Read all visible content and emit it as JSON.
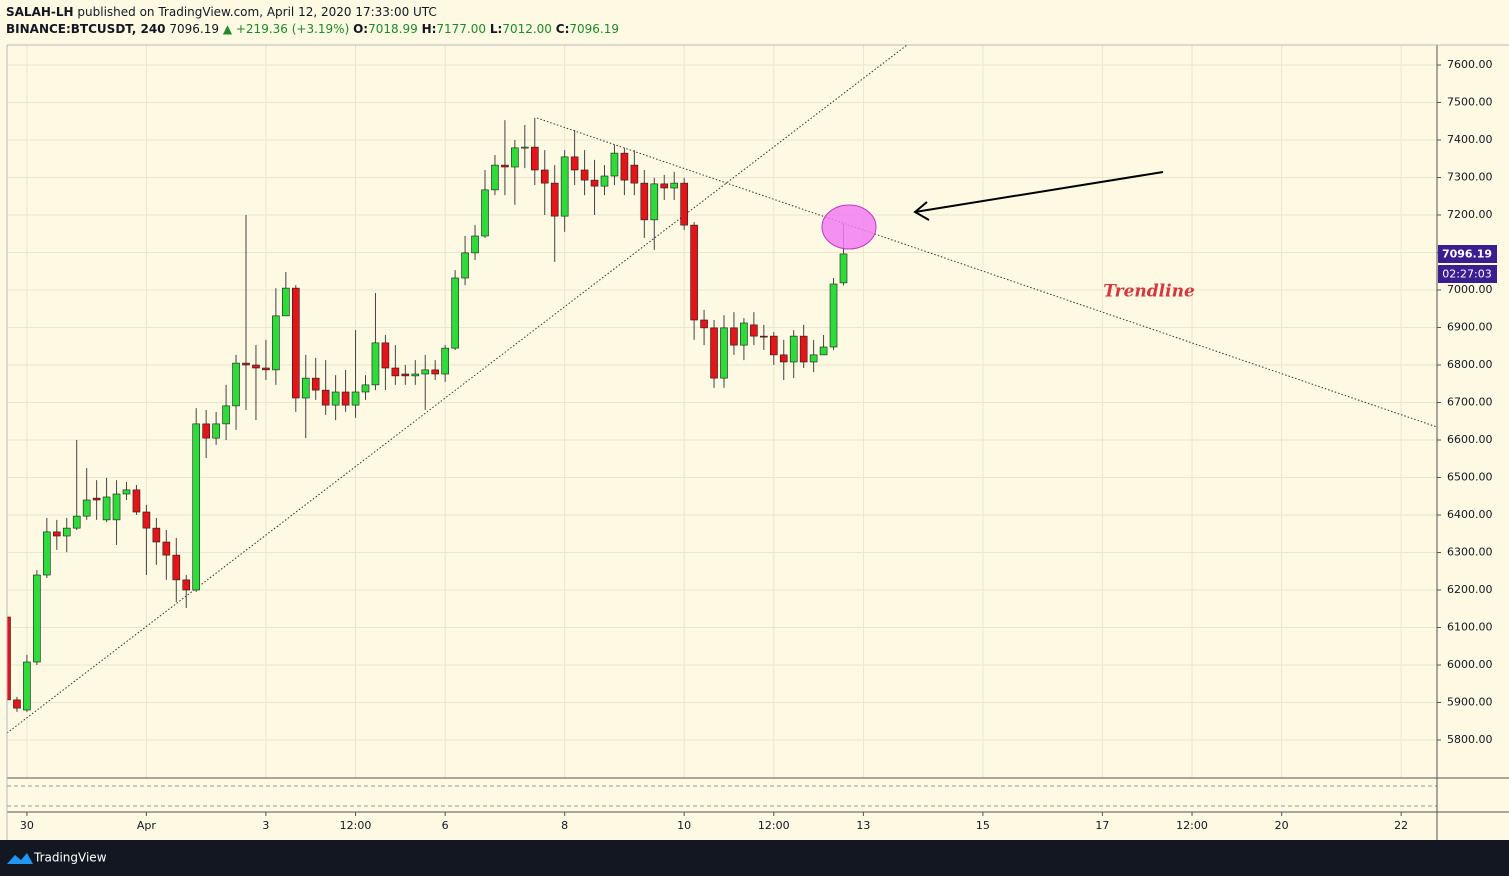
{
  "header": {
    "author": "SALAH-LH",
    "published": "published on TradingView.com, April 12, 2020 17:33:00 UTC",
    "symbol": "BINANCE:BTCUSDT, 240",
    "last": "7096.19",
    "change": "▲ +219.36 (+3.19%)",
    "o_label": "O:",
    "o_value": "7018.99",
    "h_label": "H:",
    "h_value": "7177.00",
    "l_label": "L:",
    "l_value": "7012.00",
    "c_label": "C:",
    "c_value": "7096.19"
  },
  "price_label": "7096.19",
  "countdown": "02:27:03",
  "annotation": "Trendline",
  "logo": "TradingView",
  "chart_data": {
    "type": "candlestick",
    "up_color": "#2fdb3a",
    "down_color": "#e3151a",
    "border_color": "#1b1b1b",
    "grid": true,
    "xlim": [
      0,
      143.6
    ],
    "xticks": [
      {
        "value": 2,
        "label": "30"
      },
      {
        "value": 14,
        "label": "Apr"
      },
      {
        "value": 26,
        "label": "3"
      },
      {
        "value": 35,
        "label": "12:00"
      },
      {
        "value": 44,
        "label": "6"
      },
      {
        "value": 56,
        "label": "8"
      },
      {
        "value": 68,
        "label": "10"
      },
      {
        "value": 77,
        "label": "12:00"
      },
      {
        "value": 86,
        "label": "13"
      },
      {
        "value": 98,
        "label": "15"
      },
      {
        "value": 110,
        "label": "17"
      },
      {
        "value": 119,
        "label": "12:00"
      },
      {
        "value": 128,
        "label": "20"
      },
      {
        "value": 140,
        "label": "22"
      }
    ],
    "ylim": [
      5698.7,
      7653.3
    ],
    "yticks": [
      {
        "value": 5800,
        "label": "5800.00"
      },
      {
        "value": 5900,
        "label": "5900.00"
      },
      {
        "value": 6000,
        "label": "6000.00"
      },
      {
        "value": 6100,
        "label": "6100.00"
      },
      {
        "value": 6200,
        "label": "6200.00"
      },
      {
        "value": 6300,
        "label": "6300.00"
      },
      {
        "value": 6400,
        "label": "6400.00"
      },
      {
        "value": 6500,
        "label": "6500.00"
      },
      {
        "value": 6600,
        "label": "6600.00"
      },
      {
        "value": 6700,
        "label": "6700.00"
      },
      {
        "value": 6800,
        "label": "6800.00"
      },
      {
        "value": 6900,
        "label": "6900.00"
      },
      {
        "value": 7000,
        "label": "7000.00"
      },
      {
        "value": 7100,
        "label": "7100.00"
      },
      {
        "value": 7200,
        "label": "7200.00"
      },
      {
        "value": 7300,
        "label": "7300.00"
      },
      {
        "value": 7400,
        "label": "7400.00"
      },
      {
        "value": 7500,
        "label": "7500.00"
      },
      {
        "value": 7600,
        "label": "7600.00"
      }
    ],
    "open": [
      6128,
      5907,
      5880,
      6008,
      6240,
      6355,
      6344,
      6365,
      6397,
      6445,
      6387,
      6387,
      6456,
      6467,
      6408,
      6365,
      6328,
      6293,
      6227,
      6200,
      6643,
      6605,
      6643,
      6691,
      6805,
      6800,
      6792,
      6787,
      6931,
      7005,
      6712,
      6765,
      6733,
      6693,
      6728,
      6693,
      6728,
      6747,
      6859,
      6792,
      6776,
      6771,
      6776,
      6787,
      6776,
      6845,
      7032,
      7099,
      7144,
      7267,
      7333,
      7328,
      7379,
      7381,
      7320,
      7285,
      7197,
      7355,
      7320,
      7293,
      7277,
      7304,
      7365,
      7333,
      7285,
      7187,
      7283,
      7272,
      7285,
      7173,
      6920,
      6899,
      6765,
      6899,
      6853,
      6907,
      6877,
      6877,
      6827,
      6808,
      6877,
      6808,
      6827,
      6848,
      7018.99
    ],
    "high": [
      6173,
      5915,
      6027,
      6253,
      6392,
      6387,
      6392,
      6600,
      6525,
      6493,
      6499,
      6493,
      6488,
      6480,
      6427,
      6392,
      6360,
      6339,
      6240,
      6685,
      6680,
      6675,
      6747,
      6827,
      7200,
      6853,
      6867,
      7005,
      7048,
      7013,
      6827,
      6819,
      6813,
      6773,
      6787,
      6893,
      6773,
      6992,
      6880,
      6853,
      6800,
      6813,
      6827,
      6813,
      6853,
      7053,
      7144,
      7173,
      7320,
      7360,
      7453,
      7400,
      7440,
      7459,
      7373,
      7333,
      7373,
      7427,
      7373,
      7347,
      7333,
      7387,
      7379,
      7373,
      7320,
      7299,
      7307,
      7315,
      7299,
      7181,
      6947,
      6920,
      6933,
      6941,
      6925,
      6941,
      6907,
      6888,
      6867,
      6893,
      6907,
      6867,
      6880,
      7032,
      7177
    ],
    "low": [
      5893,
      5875,
      5875,
      6000,
      6232,
      6307,
      6301,
      6360,
      6387,
      6387,
      6381,
      6320,
      6440,
      6400,
      6240,
      6267,
      6227,
      6168,
      6152,
      6195,
      6552,
      6587,
      6600,
      6627,
      6680,
      6653,
      6760,
      6747,
      6933,
      6675,
      6605,
      6707,
      6667,
      6653,
      6675,
      6659,
      6707,
      6733,
      6733,
      6747,
      6747,
      6747,
      6680,
      6760,
      6755,
      6840,
      7013,
      7080,
      7139,
      7253,
      7253,
      7227,
      7325,
      7280,
      7200,
      7075,
      7155,
      7280,
      7253,
      7200,
      7253,
      7280,
      7253,
      7253,
      7139,
      7107,
      7240,
      7240,
      7160,
      6867,
      6853,
      6739,
      6739,
      6827,
      6813,
      6853,
      6840,
      6800,
      6760,
      6765,
      6792,
      6781,
      6835,
      6840,
      7012
    ],
    "close": [
      5907,
      5885,
      6008,
      6240,
      6355,
      6344,
      6365,
      6397,
      6440,
      6440,
      6448,
      6456,
      6467,
      6408,
      6365,
      6328,
      6293,
      6227,
      6200,
      6643,
      6605,
      6643,
      6691,
      6805,
      6800,
      6792,
      6787,
      6931,
      7005,
      6712,
      6765,
      6733,
      6693,
      6728,
      6693,
      6728,
      6747,
      6859,
      6792,
      6771,
      6771,
      6776,
      6787,
      6776,
      6845,
      7032,
      7099,
      7144,
      7267,
      7333,
      7328,
      7379,
      7381,
      7320,
      7285,
      7197,
      7355,
      7320,
      7293,
      7277,
      7304,
      7365,
      7293,
      7285,
      7187,
      7283,
      7272,
      7285,
      7173,
      6920,
      6899,
      6765,
      6899,
      6853,
      6912,
      6877,
      6875,
      6827,
      6808,
      6877,
      6808,
      6827,
      6848,
      7016,
      7096.19
    ]
  }
}
